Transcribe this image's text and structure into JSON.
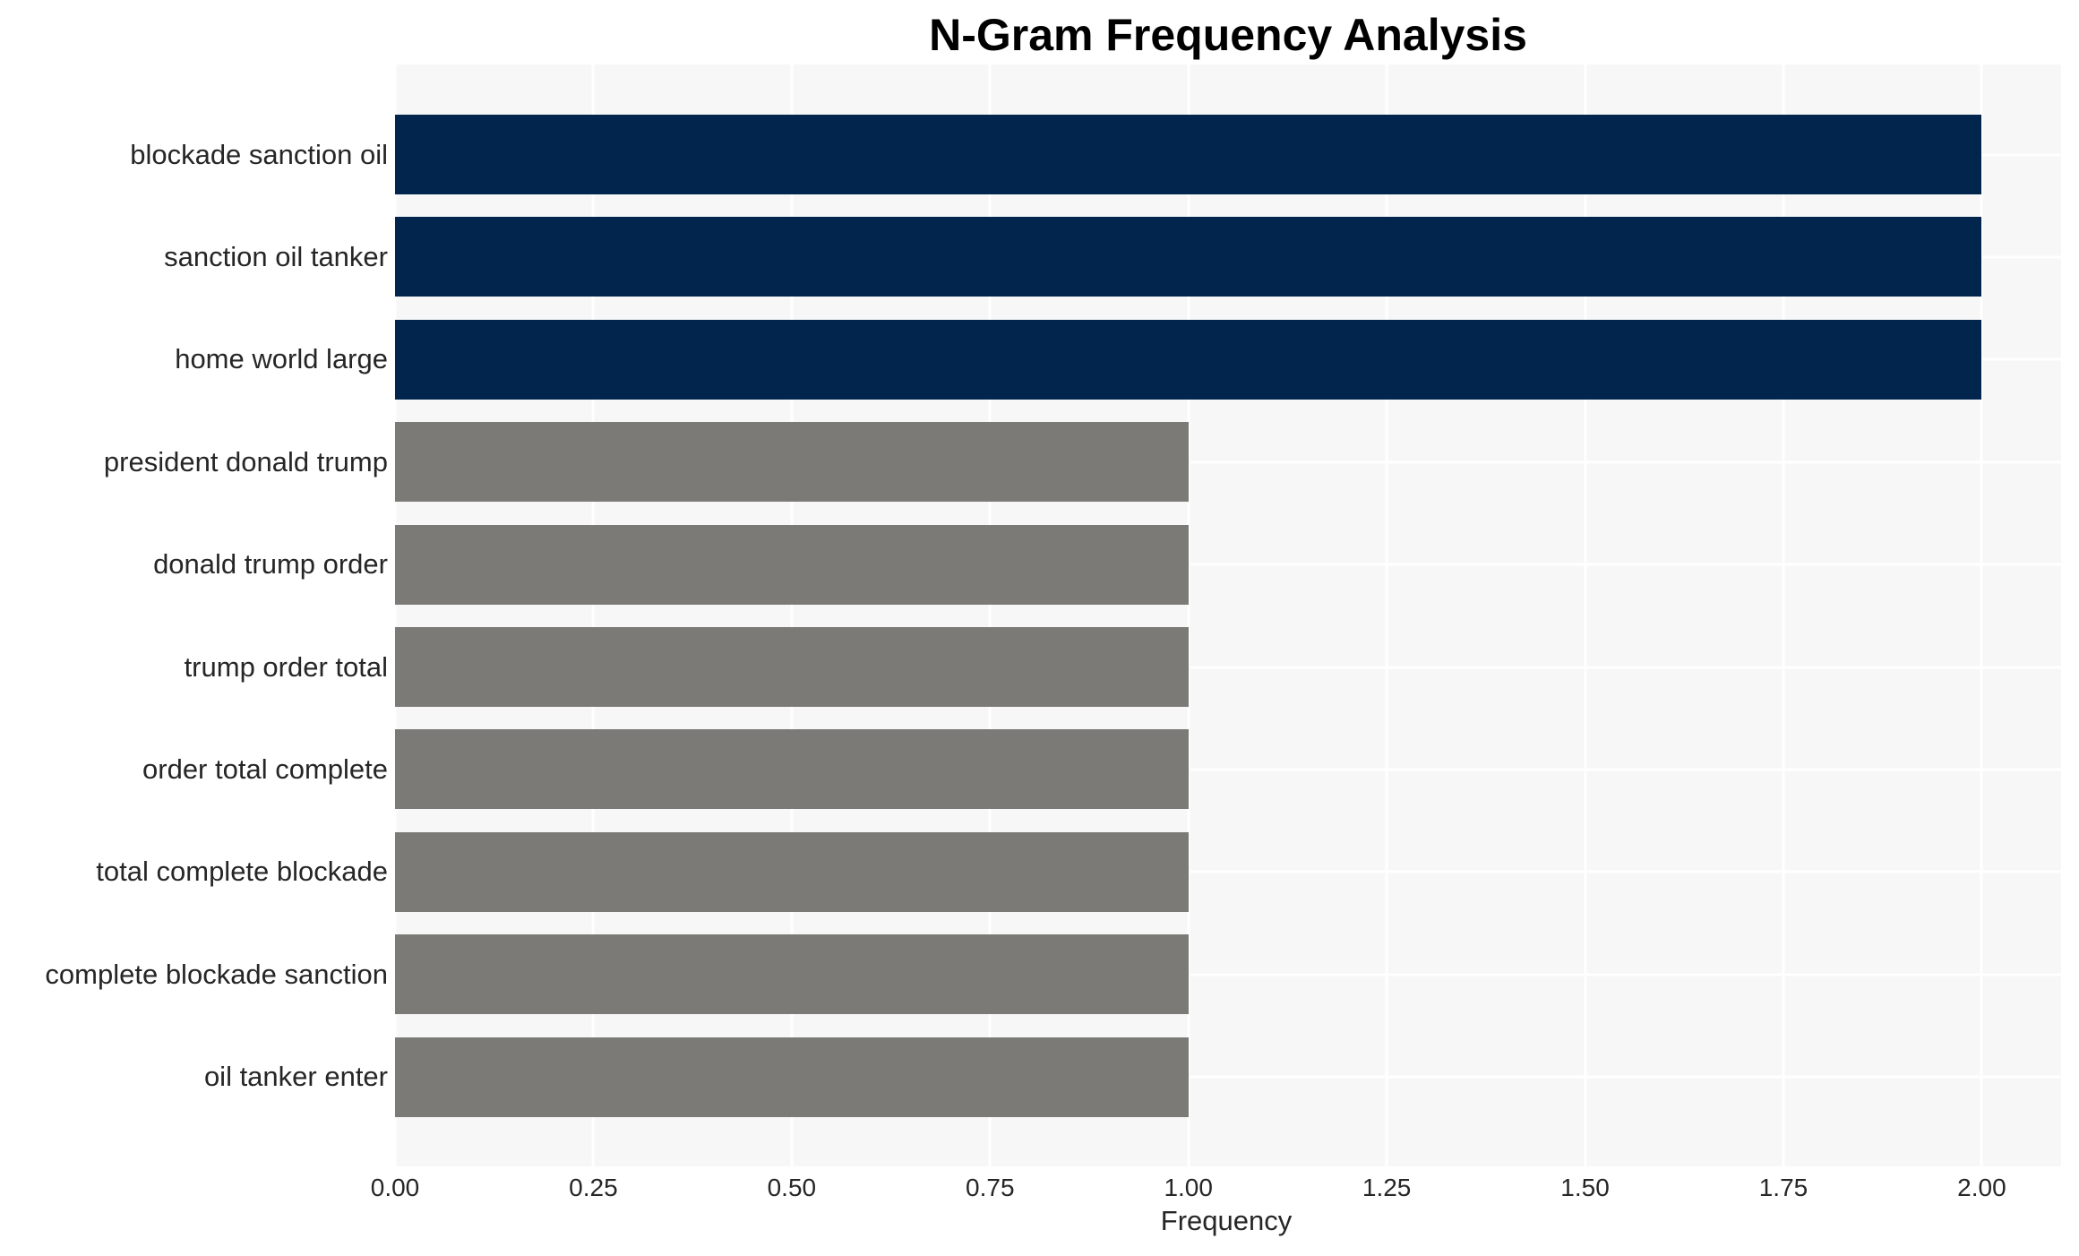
{
  "title": "N-Gram Frequency Analysis",
  "chart_data": {
    "type": "bar",
    "orientation": "horizontal",
    "title": "N-Gram Frequency Analysis",
    "xlabel": "Frequency",
    "ylabel": "",
    "categories": [
      "blockade sanction oil",
      "sanction oil tanker",
      "home world large",
      "president donald trump",
      "donald trump order",
      "trump order total",
      "order total complete",
      "total complete blockade",
      "complete blockade sanction",
      "oil tanker enter"
    ],
    "values": [
      2,
      2,
      2,
      1,
      1,
      1,
      1,
      1,
      1,
      1
    ],
    "bar_colors": [
      "#02254E",
      "#02254E",
      "#02254E",
      "#7B7A76",
      "#7B7A76",
      "#7B7A76",
      "#7B7A76",
      "#7B7A76",
      "#7B7A76",
      "#7B7A76"
    ],
    "xlim": [
      0,
      2.1
    ],
    "xticks": [
      {
        "value": 0.0,
        "label": "0.00"
      },
      {
        "value": 0.25,
        "label": "0.25"
      },
      {
        "value": 0.5,
        "label": "0.50"
      },
      {
        "value": 0.75,
        "label": "0.75"
      },
      {
        "value": 1.0,
        "label": "1.00"
      },
      {
        "value": 1.25,
        "label": "1.25"
      },
      {
        "value": 1.5,
        "label": "1.50"
      },
      {
        "value": 1.75,
        "label": "1.75"
      },
      {
        "value": 2.0,
        "label": "2.00"
      }
    ],
    "grid": true,
    "legend": false,
    "colors": {
      "bar_high": "#02254E",
      "bar_low": "#7B7A76",
      "plot_background": "#F7F7F7",
      "gridline": "#FFFFFF",
      "tick_text": "#262626",
      "title_text": "#000000",
      "figure_background": "#FFFFFF"
    }
  }
}
